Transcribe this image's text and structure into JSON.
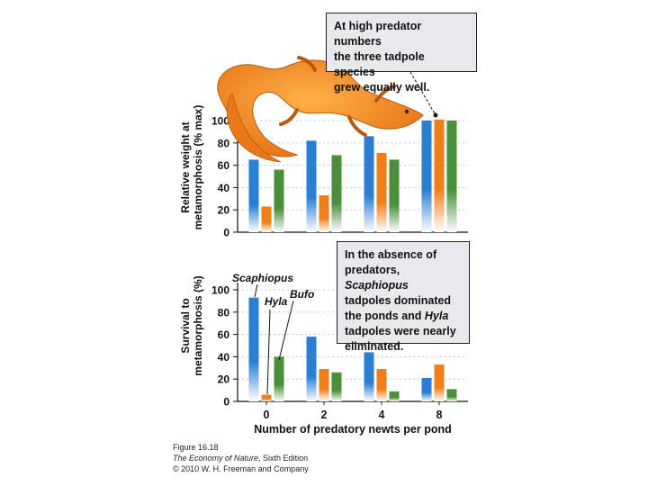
{
  "chart_data": [
    {
      "type": "bar",
      "panel": "top",
      "ylabel": "Relative weight at metamorphosis (% max)",
      "categories": [
        "0",
        "2",
        "4",
        "8"
      ],
      "yticks": [
        0,
        20,
        40,
        60,
        80,
        100
      ],
      "ylim": [
        0,
        100
      ],
      "grid": true,
      "series": [
        {
          "name": "Scaphiopus",
          "color": "#2a7fd4",
          "values": [
            65,
            82,
            86,
            100
          ]
        },
        {
          "name": "Hyla",
          "color": "#f07f1a",
          "values": [
            23,
            33,
            71,
            101
          ]
        },
        {
          "name": "Bufo",
          "color": "#4a8f3a",
          "values": [
            56,
            69,
            65,
            100
          ]
        }
      ]
    },
    {
      "type": "bar",
      "panel": "bottom",
      "ylabel": "Survival to metamorphosis (%)",
      "xlabel": "Number of predatory newts per pond",
      "categories": [
        "0",
        "2",
        "4",
        "8"
      ],
      "yticks": [
        0,
        20,
        40,
        60,
        80,
        100
      ],
      "ylim": [
        0,
        100
      ],
      "grid": true,
      "series": [
        {
          "name": "Scaphiopus",
          "color": "#2a7fd4",
          "values": [
            93,
            58,
            44,
            21
          ]
        },
        {
          "name": "Hyla",
          "color": "#f07f1a",
          "values": [
            6,
            29,
            29,
            33
          ]
        },
        {
          "name": "Bufo",
          "color": "#4a8f3a",
          "values": [
            40,
            26,
            9,
            11
          ]
        }
      ]
    }
  ],
  "callouts": {
    "top": {
      "line1": "At high predator numbers",
      "line2": "the three tadpole species",
      "line3": "grew equally well."
    },
    "bottom": {
      "line1": "In the absence of",
      "line2a": "predators, ",
      "line2b": "Scaphiopus",
      "line3": "tadpoles dominated",
      "line4a": "the ponds and ",
      "line4b": "Hyla",
      "line5": "tadpoles were nearly",
      "line6": "eliminated."
    }
  },
  "labels": {
    "ylabel_top_1": "Relative weight at",
    "ylabel_top_2": "metamorphosis (% max)",
    "ylabel_bottom_1": "Survival to",
    "ylabel_bottom_2": "metamorphosis (%)",
    "xlabel": "Number of predatory newts per pond",
    "scaphiopus": "Scaphiopus",
    "hyla": "Hyla",
    "bufo": "Bufo"
  },
  "credits": {
    "figure": "Figure 16.18",
    "book_title": "The Economy of Nature",
    "edition": ", Sixth Edition",
    "copyright": "© 2010 W. H. Freeman and Company"
  },
  "illustration": {
    "icon": "newt-illustration-icon",
    "color": "#f08a1c"
  }
}
